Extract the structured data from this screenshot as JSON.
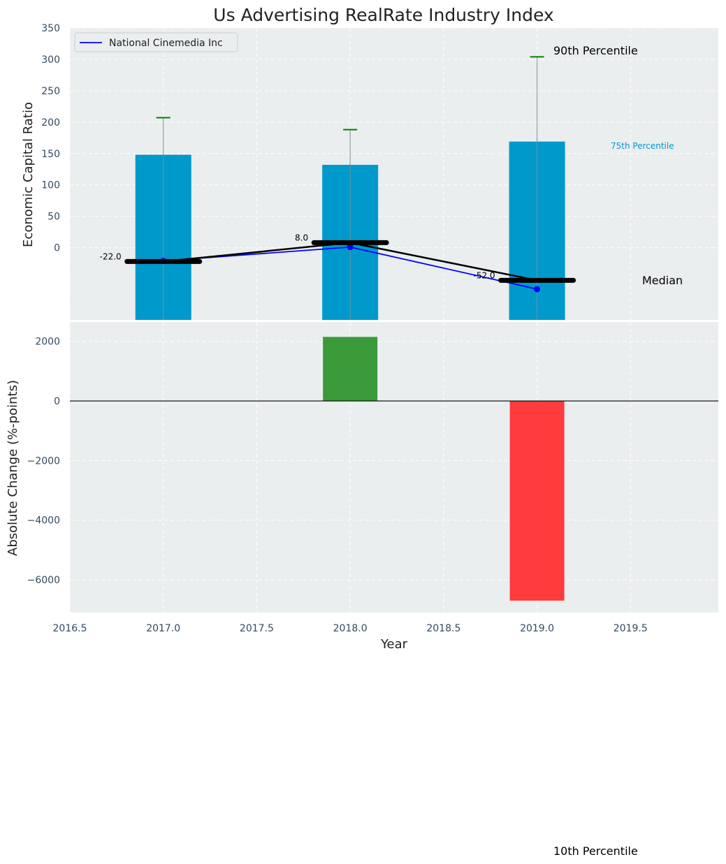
{
  "chart_data": [
    {
      "type": "bar",
      "title": "Us Advertising RealRate Industry Index",
      "ylabel": "Economic Capital Ratio",
      "ylim": [
        -115,
        350
      ],
      "yticks": [
        0,
        50,
        100,
        150,
        200,
        250,
        300,
        350
      ],
      "x": [
        2017,
        2018,
        2019
      ],
      "bars": {
        "name": "75th Percentile",
        "values": [
          148,
          132,
          169
        ],
        "color": "#0099cc"
      },
      "percentile_90": {
        "name": "90th Percentile",
        "values": [
          207,
          188,
          304
        ],
        "color": "#008000"
      },
      "percentile_10": {
        "name": "10th Percentile"
      },
      "median": {
        "name": "Median",
        "values": [
          -22,
          8,
          -52
        ]
      },
      "company": {
        "name": "National Cinemedia Inc",
        "values": [
          -21,
          1,
          -66
        ],
        "color": "#0000ff"
      },
      "median_labels": [
        "-22.0",
        "8.0",
        "-52.0"
      ],
      "legend": "upper-left"
    },
    {
      "type": "bar",
      "xlabel": "Year",
      "ylabel": "Absolute Change (%-points)",
      "ylim": [
        -7100,
        2650
      ],
      "yticks": [
        -6000,
        -4000,
        -2000,
        0,
        2000
      ],
      "ytick_labels": [
        "−6000",
        "−4000",
        "−2000",
        "0",
        "2000"
      ],
      "xlim": [
        2016.5,
        2019.97
      ],
      "xticks": [
        2016.5,
        2017.0,
        2017.5,
        2018.0,
        2018.5,
        2019.0,
        2019.5
      ],
      "xtick_labels": [
        "2016.5",
        "2017.0",
        "2017.5",
        "2018.0",
        "2018.5",
        "2019.0",
        "2019.5"
      ],
      "x": [
        2018,
        2019
      ],
      "values": [
        2150,
        -6700
      ],
      "colors": {
        "positive": "#3a9a3a",
        "negative": "#ff3b3b"
      }
    }
  ]
}
